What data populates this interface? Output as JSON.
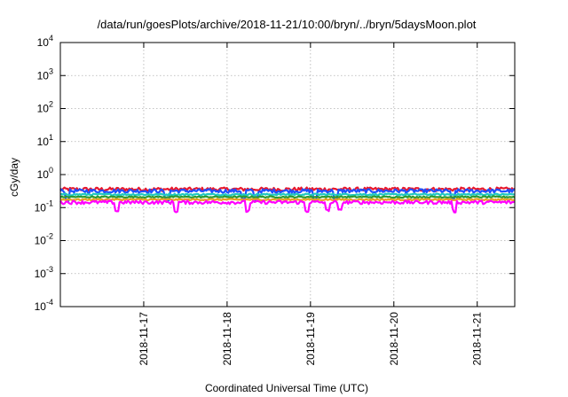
{
  "chart_data": {
    "type": "line",
    "title": "/data/run/goesPlots/archive/2018-11-21/10:00/bryn/../bryn/5daysMoon.plot",
    "xlabel": "Coordinated Universal Time (UTC)",
    "ylabel": "cGy/day",
    "yscale": "log",
    "ylim": [
      0.0001,
      10000
    ],
    "xlim_days": [
      0,
      5.45
    ],
    "y_ticks": [
      {
        "base": "10",
        "exp": "-4",
        "value": 0.0001
      },
      {
        "base": "10",
        "exp": "-3",
        "value": 0.001
      },
      {
        "base": "10",
        "exp": "-2",
        "value": 0.01
      },
      {
        "base": "10",
        "exp": "-1",
        "value": 0.1
      },
      {
        "base": "10",
        "exp": "0",
        "value": 1
      },
      {
        "base": "10",
        "exp": "1",
        "value": 10
      },
      {
        "base": "10",
        "exp": "2",
        "value": 100
      },
      {
        "base": "10",
        "exp": "3",
        "value": 1000
      },
      {
        "base": "10",
        "exp": "4",
        "value": 10000
      }
    ],
    "x_ticks": [
      {
        "label": "2018-11-17",
        "pos": 1
      },
      {
        "label": "2018-11-18",
        "pos": 2
      },
      {
        "label": "2018-11-19",
        "pos": 3
      },
      {
        "label": "2018-11-20",
        "pos": 4
      },
      {
        "label": "2018-11-21",
        "pos": 5
      }
    ],
    "grid": true,
    "series": [
      {
        "color": "#e8182c",
        "level": 0.36,
        "jitter": 0.13,
        "dips": []
      },
      {
        "color": "#1f4fff",
        "level": 0.32,
        "jitter": 0.13,
        "dips": [
          0.08,
          1.28,
          2.2,
          2.35,
          3.05,
          3.3,
          4.7
        ]
      },
      {
        "color": "#20c8c0",
        "level": 0.25,
        "jitter": 0.06,
        "dips": []
      },
      {
        "color": "#2f9a2f",
        "level": 0.21,
        "jitter": 0.05,
        "dips": []
      },
      {
        "color": "#e8a020",
        "level": 0.175,
        "jitter": 0.05,
        "dips": []
      },
      {
        "color": "#ff00ff",
        "level": 0.145,
        "jitter": 0.12,
        "dips": [
          0.68,
          1.38,
          2.25,
          2.95,
          3.2,
          3.35,
          4.72
        ]
      }
    ]
  }
}
